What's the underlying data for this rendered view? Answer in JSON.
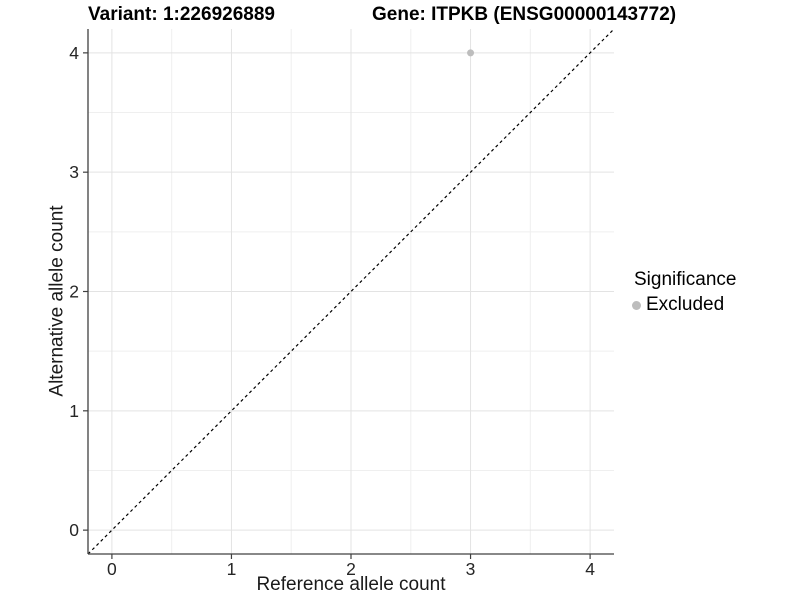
{
  "header": {
    "variant_title": "Variant: 1:226926889",
    "gene_title": "Gene: ITPKB (ENSG00000143772)"
  },
  "legend": {
    "title": "Significance",
    "items": [
      {
        "label": "Excluded",
        "color": "#bdbdbd"
      }
    ]
  },
  "chart_data": {
    "type": "scatter",
    "titles": [
      "Variant: 1:226926889",
      "Gene: ITPKB (ENSG00000143772)"
    ],
    "xlabel": "Reference allele count",
    "ylabel": "Alternative allele count",
    "xlim": [
      -0.2,
      4.2
    ],
    "ylim": [
      -0.2,
      4.2
    ],
    "x_ticks": [
      0,
      1,
      2,
      3,
      4
    ],
    "y_ticks": [
      0,
      1,
      2,
      3,
      4
    ],
    "minor_grid_x": [
      0.5,
      1.5,
      2.5,
      3.5
    ],
    "minor_grid_y": [
      0.5,
      1.5,
      2.5,
      3.5
    ],
    "grid": "major+minor",
    "legend_position": "right",
    "series": [
      {
        "name": "Excluded",
        "color": "#bdbdbd",
        "marker": "circle",
        "points": [
          {
            "x": 3,
            "y": 4
          }
        ]
      }
    ],
    "reference_line": {
      "kind": "identity",
      "equation": "y = x",
      "style": "dashed",
      "color": "#000000"
    }
  },
  "style": {
    "grid_major_color": "#e3e3e3",
    "grid_minor_color": "#efefef",
    "axis_color": "#404040",
    "tick_label_color": "#262626"
  }
}
